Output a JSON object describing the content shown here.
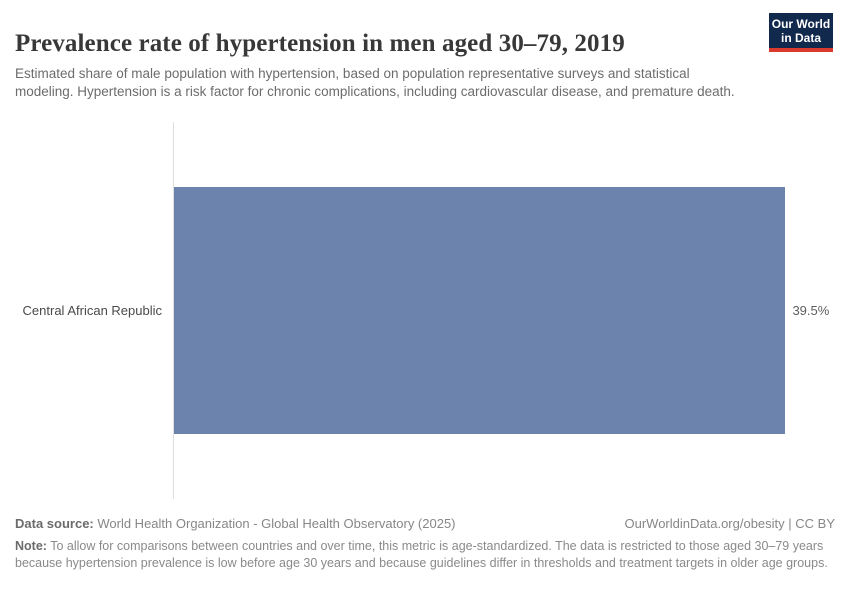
{
  "header": {
    "title": "Prevalence rate of hypertension in men aged 30–79, 2019",
    "subtitle": "Estimated share of male population with hypertension, based on population representative surveys and statistical modeling. Hypertension is a risk factor for chronic complications, including cardiovascular disease, and premature death.",
    "logo": {
      "line1": "Our World",
      "line2": "in Data",
      "bg_color": "#12294e",
      "accent_color": "#d93a2c"
    }
  },
  "chart_data": {
    "type": "bar",
    "orientation": "horizontal",
    "title": "Prevalence rate of hypertension in men aged 30–79, 2019",
    "categories": [
      "Central African Republic"
    ],
    "values": [
      39.5
    ],
    "value_labels": [
      "39.5%"
    ],
    "xlim": [
      0,
      42.7
    ],
    "grid": false,
    "legend": false,
    "bar_color": "#6c84ad",
    "axis_line_color": "#dedede"
  },
  "footer": {
    "source_label": "Data source:",
    "source_text": " World Health Organization - Global Health Observatory (2025)",
    "attribution": "OurWorldinData.org/obesity | CC BY",
    "note_label": "Note:",
    "note_text": " To allow for comparisons between countries and over time, this metric is age-standardized. The data is restricted to those aged 30–79 years because hypertension prevalence is low before age 30 years and because guidelines differ in thresholds and treatment targets in older age groups."
  }
}
